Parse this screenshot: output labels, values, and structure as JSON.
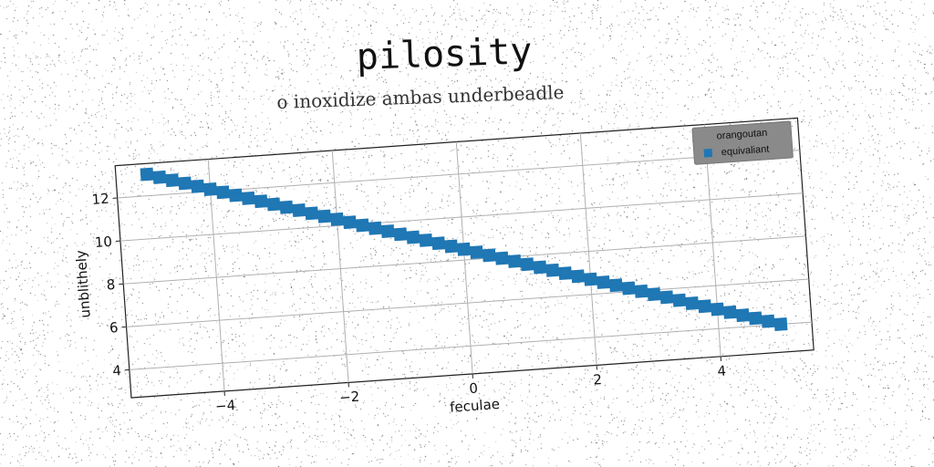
{
  "chart_data": {
    "type": "scatter",
    "title": "pilosity",
    "subtitle": "o inoxidize ambas underbeadle",
    "xlabel": "feculae",
    "ylabel": "unblithely",
    "xlim": [
      -5.5,
      5.5
    ],
    "ylim": [
      2.7,
      13.5
    ],
    "xticks": [
      -4,
      -2,
      0,
      2,
      4
    ],
    "xtick_labels": [
      "−4",
      "−2",
      "0",
      "2",
      "4"
    ],
    "yticks": [
      4,
      6,
      8,
      10,
      12
    ],
    "ytick_labels": [
      "4",
      "6",
      "8",
      "10",
      "12"
    ],
    "grid": true,
    "legend": {
      "title": "orangoutan",
      "placement": "top-right"
    },
    "series": [
      {
        "name": "equivaliant",
        "color": "#1f77b4",
        "marker": "square",
        "x": [
          -5.0,
          -4.8,
          -4.6,
          -4.4,
          -4.2,
          -4.0,
          -3.8,
          -3.6,
          -3.4,
          -3.2,
          -3.0,
          -2.8,
          -2.6,
          -2.4,
          -2.2,
          -2.0,
          -1.8,
          -1.6,
          -1.4,
          -1.2,
          -1.0,
          -0.8,
          -0.6,
          -0.4,
          -0.2,
          0.0,
          0.2,
          0.4,
          0.6,
          0.8,
          1.0,
          1.2,
          1.4,
          1.6,
          1.8,
          2.0,
          2.2,
          2.4,
          2.6,
          2.8,
          3.0,
          3.2,
          3.4,
          3.6,
          3.8,
          4.0,
          4.2,
          4.4,
          4.6,
          4.8,
          5.0
        ],
        "y": [
          13.0,
          12.82,
          12.64,
          12.46,
          12.28,
          12.1,
          11.92,
          11.74,
          11.56,
          11.38,
          11.2,
          11.02,
          10.84,
          10.66,
          10.48,
          10.3,
          10.12,
          9.94,
          9.76,
          9.58,
          9.4,
          9.22,
          9.04,
          8.86,
          8.68,
          8.5,
          8.32,
          8.14,
          7.96,
          7.78,
          7.6,
          7.42,
          7.24,
          7.06,
          6.88,
          6.7,
          6.52,
          6.34,
          6.16,
          5.98,
          5.8,
          5.62,
          5.44,
          5.26,
          5.08,
          4.9,
          4.72,
          4.54,
          4.36,
          4.18,
          4.0
        ]
      }
    ]
  }
}
